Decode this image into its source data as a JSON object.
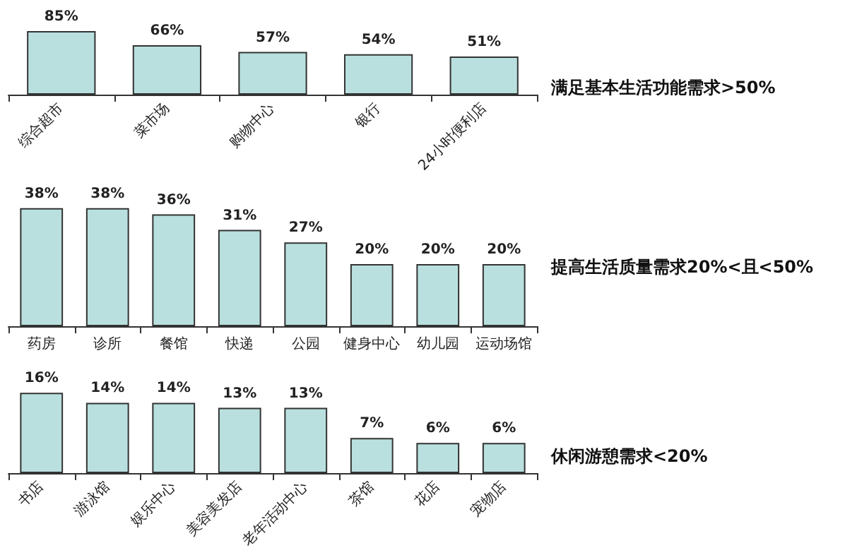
{
  "chart_data": [
    {
      "type": "bar",
      "annotations": [
        "满足基本生活功能需求>50%"
      ],
      "categories": [
        "综合超市",
        "菜市场",
        "购物中心",
        "银行",
        "24小时便利店"
      ],
      "values": [
        85,
        66,
        57,
        54,
        51
      ],
      "value_labels": [
        "85%",
        "66%",
        "57%",
        "54%",
        "51%"
      ],
      "color": "#b9e0de"
    },
    {
      "type": "bar",
      "annotations": [
        "提高生活质量需求20%<且<50%"
      ],
      "categories": [
        "药房",
        "诊所",
        "餐馆",
        "快递",
        "公园",
        "健身中心",
        "幼儿园",
        "运动场馆"
      ],
      "values": [
        38,
        38,
        36,
        31,
        27,
        20,
        20,
        20
      ],
      "value_labels": [
        "38%",
        "38%",
        "36%",
        "31%",
        "27%",
        "20%",
        "20%",
        "20%"
      ],
      "color": "#b9e0de"
    },
    {
      "type": "bar",
      "annotations": [
        "休闲游憩需求<20%"
      ],
      "categories": [
        "书店",
        "游泳馆",
        "娱乐中心",
        "美容美发店",
        "老年活动中心",
        "茶馆",
        "花店",
        "宠物店"
      ],
      "values": [
        16,
        14,
        14,
        13,
        13,
        7,
        6,
        6
      ],
      "value_labels": [
        "16%",
        "14%",
        "14%",
        "13%",
        "13%",
        "7%",
        "6%",
        "6%"
      ],
      "color": "#b9e0de"
    }
  ]
}
